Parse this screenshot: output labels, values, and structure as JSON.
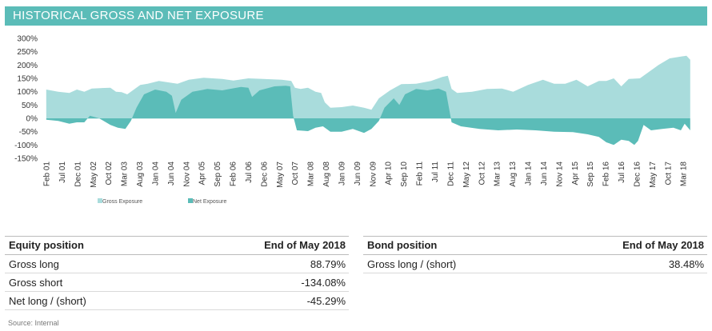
{
  "header": {
    "title": "HISTORICAL GROSS AND NET EXPOSURE"
  },
  "chart_data": {
    "type": "area",
    "title": "HISTORICAL GROSS AND NET EXPOSURE",
    "xlabel": "",
    "ylabel": "",
    "ylim": [
      -150,
      300
    ],
    "ytick_labels": [
      "300%",
      "250%",
      "200%",
      "150%",
      "100%",
      "50%",
      "0%",
      "-50%",
      "-100%",
      "-150%"
    ],
    "ytick_values": [
      300,
      250,
      200,
      150,
      100,
      50,
      0,
      -50,
      -100,
      -150
    ],
    "x_start": [
      2001,
      2
    ],
    "x_end": [
      2018,
      5
    ],
    "xtick_labels": [
      "Feb 01",
      "Jul 01",
      "Dec 01",
      "May 02",
      "Oct 02",
      "Mar 03",
      "Aug 03",
      "Jan 04",
      "Jun 04",
      "Nov 04",
      "Apr 05",
      "Sep 05",
      "Feb 06",
      "Jul 06",
      "Dec 06",
      "May 07",
      "Oct 07",
      "Mar 08",
      "Aug 08",
      "Jan 09",
      "Jun 09",
      "Nov 09",
      "Apr 10",
      "Sep 10",
      "Feb 11",
      "Jul 11",
      "Dec 11",
      "May 12",
      "Oct 12",
      "Mar 13",
      "Aug 13",
      "Jan 14",
      "Jun 14",
      "Nov 14",
      "Apr 15",
      "Sep 15",
      "Feb 16",
      "Jul 16",
      "Dec 16",
      "May 17",
      "Oct 17",
      "Mar 18"
    ],
    "series": [
      {
        "name": "Gross Exposure",
        "color": "#a9dcdc",
        "points": [
          [
            2001.08,
            108
          ],
          [
            2001.4,
            100
          ],
          [
            2001.7,
            95
          ],
          [
            2001.9,
            108
          ],
          [
            2002.1,
            100
          ],
          [
            2002.3,
            112
          ],
          [
            2002.8,
            115
          ],
          [
            2002.95,
            100
          ],
          [
            2003.1,
            98
          ],
          [
            2003.25,
            90
          ],
          [
            2003.4,
            105
          ],
          [
            2003.6,
            125
          ],
          [
            2003.8,
            130
          ],
          [
            2004.1,
            140
          ],
          [
            2004.6,
            130
          ],
          [
            2004.9,
            145
          ],
          [
            2005.3,
            152
          ],
          [
            2005.8,
            148
          ],
          [
            2006.1,
            142
          ],
          [
            2006.5,
            150
          ],
          [
            2006.9,
            148
          ],
          [
            2007.4,
            145
          ],
          [
            2007.65,
            140
          ],
          [
            2007.75,
            115
          ],
          [
            2007.9,
            110
          ],
          [
            2008.1,
            115
          ],
          [
            2008.3,
            100
          ],
          [
            2008.45,
            95
          ],
          [
            2008.55,
            60
          ],
          [
            2008.7,
            40
          ],
          [
            2009.0,
            42
          ],
          [
            2009.3,
            48
          ],
          [
            2009.6,
            40
          ],
          [
            2009.8,
            32
          ],
          [
            2010.0,
            75
          ],
          [
            2010.3,
            105
          ],
          [
            2010.6,
            128
          ],
          [
            2011.0,
            130
          ],
          [
            2011.4,
            140
          ],
          [
            2011.7,
            155
          ],
          [
            2011.85,
            160
          ],
          [
            2011.95,
            110
          ],
          [
            2012.1,
            95
          ],
          [
            2012.5,
            100
          ],
          [
            2012.9,
            110
          ],
          [
            2013.3,
            112
          ],
          [
            2013.6,
            100
          ],
          [
            2014.0,
            125
          ],
          [
            2014.4,
            145
          ],
          [
            2014.7,
            130
          ],
          [
            2015.0,
            130
          ],
          [
            2015.3,
            145
          ],
          [
            2015.6,
            120
          ],
          [
            2015.9,
            140
          ],
          [
            2016.1,
            140
          ],
          [
            2016.3,
            150
          ],
          [
            2016.5,
            120
          ],
          [
            2016.7,
            148
          ],
          [
            2017.0,
            150
          ],
          [
            2017.3,
            180
          ],
          [
            2017.5,
            200
          ],
          [
            2017.8,
            225
          ],
          [
            2018.1,
            232
          ],
          [
            2018.25,
            235
          ],
          [
            2018.35,
            220
          ]
        ]
      },
      {
        "name": "Net Exposure",
        "color": "#5bbcb8",
        "points": [
          [
            2001.08,
            -5
          ],
          [
            2001.4,
            -10
          ],
          [
            2001.7,
            -20
          ],
          [
            2001.9,
            -15
          ],
          [
            2002.1,
            -15
          ],
          [
            2002.25,
            10
          ],
          [
            2002.5,
            0
          ],
          [
            2002.8,
            -25
          ],
          [
            2003.0,
            -35
          ],
          [
            2003.2,
            -40
          ],
          [
            2003.35,
            -10
          ],
          [
            2003.5,
            40
          ],
          [
            2003.7,
            90
          ],
          [
            2004.0,
            108
          ],
          [
            2004.3,
            100
          ],
          [
            2004.45,
            85
          ],
          [
            2004.55,
            20
          ],
          [
            2004.7,
            70
          ],
          [
            2005.0,
            100
          ],
          [
            2005.4,
            110
          ],
          [
            2005.8,
            105
          ],
          [
            2006.0,
            110
          ],
          [
            2006.3,
            118
          ],
          [
            2006.5,
            115
          ],
          [
            2006.6,
            80
          ],
          [
            2006.8,
            105
          ],
          [
            2007.2,
            120
          ],
          [
            2007.5,
            122
          ],
          [
            2007.62,
            120
          ],
          [
            2007.7,
            10
          ],
          [
            2007.8,
            -45
          ],
          [
            2008.1,
            -48
          ],
          [
            2008.3,
            -35
          ],
          [
            2008.5,
            -30
          ],
          [
            2008.7,
            -50
          ],
          [
            2009.0,
            -50
          ],
          [
            2009.3,
            -40
          ],
          [
            2009.6,
            -55
          ],
          [
            2009.8,
            -40
          ],
          [
            2010.0,
            -10
          ],
          [
            2010.15,
            40
          ],
          [
            2010.4,
            75
          ],
          [
            2010.55,
            50
          ],
          [
            2010.7,
            90
          ],
          [
            2011.0,
            110
          ],
          [
            2011.3,
            105
          ],
          [
            2011.6,
            112
          ],
          [
            2011.8,
            100
          ],
          [
            2011.95,
            -15
          ],
          [
            2012.2,
            -30
          ],
          [
            2012.7,
            -40
          ],
          [
            2013.2,
            -45
          ],
          [
            2013.7,
            -42
          ],
          [
            2014.2,
            -45
          ],
          [
            2014.7,
            -50
          ],
          [
            2015.2,
            -52
          ],
          [
            2015.6,
            -60
          ],
          [
            2015.9,
            -70
          ],
          [
            2016.1,
            -90
          ],
          [
            2016.3,
            -100
          ],
          [
            2016.5,
            -80
          ],
          [
            2016.7,
            -85
          ],
          [
            2016.85,
            -100
          ],
          [
            2016.95,
            -85
          ],
          [
            2017.1,
            -25
          ],
          [
            2017.3,
            -45
          ],
          [
            2017.6,
            -40
          ],
          [
            2017.9,
            -35
          ],
          [
            2018.1,
            -45
          ],
          [
            2018.2,
            -20
          ],
          [
            2018.35,
            -45
          ]
        ]
      }
    ],
    "legend": [
      "Gross Exposure",
      "Net Exposure"
    ]
  },
  "equity": {
    "header": "Equity position",
    "date_header": "End of May 2018",
    "rows": [
      {
        "label": "Gross long",
        "value": "88.79%"
      },
      {
        "label": "Gross short",
        "value": "-134.08%"
      },
      {
        "label": "Net long / (short)",
        "value": "-45.29%"
      }
    ]
  },
  "bond": {
    "header": "Bond position",
    "date_header": "End of May 2018",
    "rows": [
      {
        "label": "Gross long / (short)",
        "value": "38.48%"
      }
    ]
  },
  "source": "Source: Internal"
}
